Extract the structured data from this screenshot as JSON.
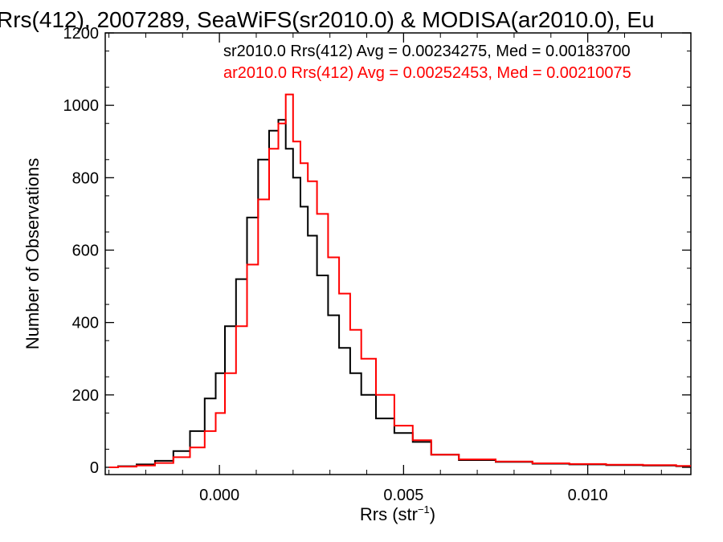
{
  "chart_data": {
    "type": "line",
    "title": "Rrs(412), 2007289, SeaWiFS(sr2010.0) & MODISA(ar2010.0), Eu",
    "xlabel_main": "Rrs (str",
    "xlabel_sup": "−1",
    "xlabel_close": ")",
    "ylabel": "Number of Observations",
    "xlim": [
      -0.0031,
      0.0128
    ],
    "ylim": [
      -20,
      1200
    ],
    "x_ticks": [
      0.0,
      0.005,
      0.01
    ],
    "x_tick_labels": [
      "0.000",
      "0.005",
      "0.010"
    ],
    "y_ticks": [
      0,
      200,
      400,
      600,
      800,
      1000,
      1200
    ],
    "y_tick_labels": [
      "0",
      "200",
      "400",
      "600",
      "800",
      "1000",
      "1200"
    ],
    "annotations": [
      {
        "text": "sr2010.0 Rrs(412) Avg = 0.00234275, Med = 0.00183700",
        "color": "#000000"
      },
      {
        "text": "ar2010.0 Rrs(412) Avg = 0.00252453, Med = 0.00210075",
        "color": "#ff0000"
      }
    ],
    "series": [
      {
        "color": "#000000",
        "x": [
          -0.003,
          -0.0025,
          -0.002,
          -0.0015,
          -0.001,
          -0.0006,
          -0.0002,
          0.0,
          0.0003,
          0.0006,
          0.0009,
          0.0012,
          0.0015,
          0.0017,
          0.0019,
          0.0021,
          0.0023,
          0.0025,
          0.0028,
          0.0031,
          0.0034,
          0.0037,
          0.004,
          0.0045,
          0.005,
          0.0055,
          0.006,
          0.007,
          0.008,
          0.009,
          0.01,
          0.011,
          0.012,
          0.0128
        ],
        "y": [
          0,
          3,
          8,
          18,
          45,
          100,
          190,
          260,
          390,
          520,
          690,
          850,
          930,
          960,
          880,
          800,
          720,
          640,
          530,
          420,
          330,
          260,
          200,
          135,
          95,
          70,
          35,
          20,
          15,
          10,
          8,
          6,
          5,
          3
        ]
      },
      {
        "color": "#ff0000",
        "x": [
          -0.003,
          -0.0025,
          -0.002,
          -0.0015,
          -0.001,
          -0.0006,
          -0.0002,
          0.0,
          0.0003,
          0.0006,
          0.0009,
          0.0012,
          0.0015,
          0.0017,
          0.0019,
          0.0021,
          0.0023,
          0.0025,
          0.0028,
          0.0031,
          0.0034,
          0.0037,
          0.004,
          0.0045,
          0.005,
          0.0055,
          0.006,
          0.007,
          0.008,
          0.009,
          0.01,
          0.011,
          0.012,
          0.0128
        ],
        "y": [
          0,
          2,
          5,
          12,
          28,
          55,
          100,
          150,
          260,
          390,
          560,
          740,
          880,
          950,
          1030,
          900,
          840,
          790,
          700,
          580,
          480,
          380,
          300,
          200,
          115,
          75,
          35,
          22,
          16,
          11,
          9,
          7,
          6,
          4
        ]
      }
    ]
  }
}
